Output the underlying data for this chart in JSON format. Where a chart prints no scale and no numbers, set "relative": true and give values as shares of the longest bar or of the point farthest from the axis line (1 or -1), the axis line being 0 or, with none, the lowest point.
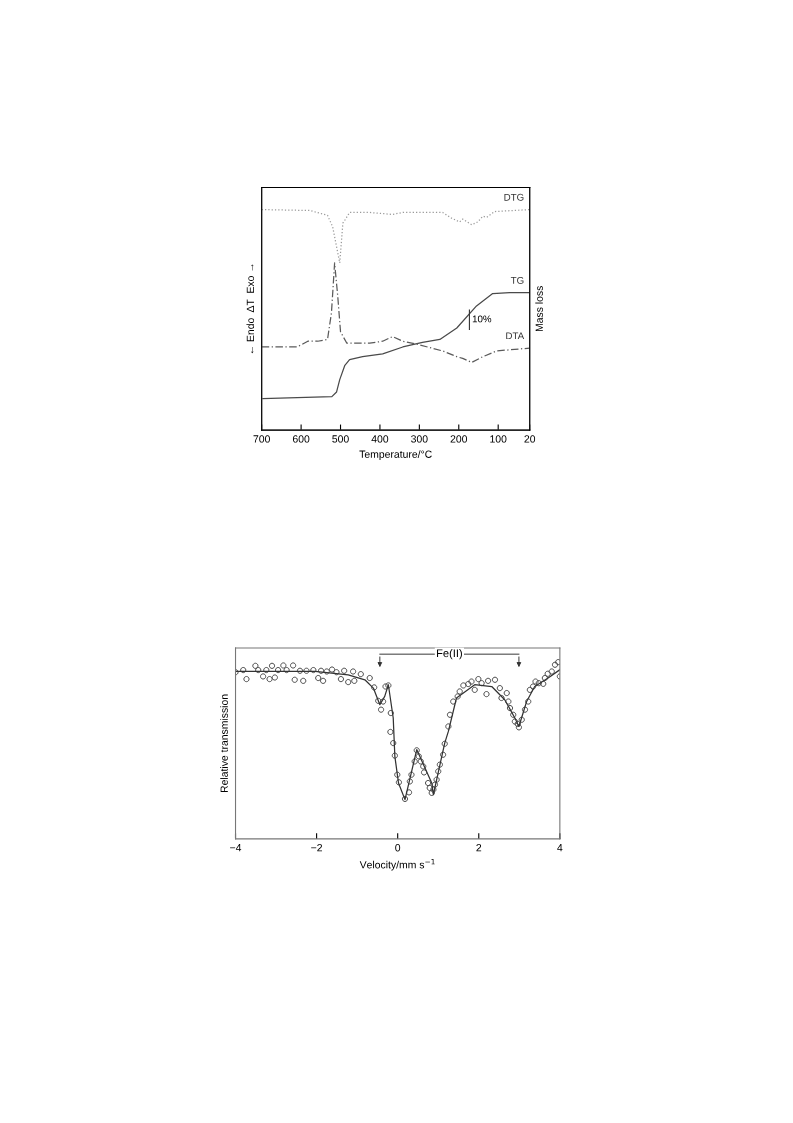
{
  "chart_data": [
    {
      "type": "line",
      "relative": true,
      "xlabel": "Temperature/°C",
      "ylabel": "← Endo  ΔT  Exo →",
      "y2label": "Mass loss",
      "xlim": [
        700,
        20
      ],
      "xticks": [
        700,
        600,
        500,
        400,
        300,
        200,
        100,
        20
      ],
      "tick_labels": "x",
      "grid": false,
      "legend": false,
      "annotations": [
        "10%"
      ],
      "series": [
        {
          "name": "DTG",
          "color": "#9a9a9a",
          "line_style": "dotted",
          "x": [
            700,
            578,
            533,
            520,
            502,
            494,
            489,
            477,
            426,
            368,
            342,
            241,
            218,
            198,
            190,
            167,
            152,
            139,
            129,
            109,
            20
          ],
          "values": [
            1.0,
            0.996,
            0.974,
            0.922,
            0.758,
            0.939,
            0.952,
            0.987,
            0.987,
            0.978,
            0.987,
            0.987,
            0.961,
            0.944,
            0.957,
            0.931,
            0.944,
            0.97,
            0.965,
            0.991,
            1.0
          ]
        },
        {
          "name": "TG",
          "color": "#4a4a4a",
          "line_style": "solid",
          "x": [
            697,
            522,
            510,
            502,
            489,
            477,
            444,
            393,
            342,
            292,
            248,
            205,
            155,
            114,
            71,
            20
          ],
          "values": [
            0.143,
            0.152,
            0.173,
            0.229,
            0.294,
            0.32,
            0.333,
            0.346,
            0.377,
            0.398,
            0.411,
            0.463,
            0.563,
            0.619,
            0.623,
            0.623
          ]
        },
        {
          "name": "DTA",
          "color": "#5a5a5a",
          "line_style": "dashed",
          "x": [
            700,
            609,
            583,
            558,
            533,
            523,
            515,
            507,
            500,
            484,
            426,
            393,
            368,
            342,
            307,
            241,
            205,
            190,
            167,
            139,
            104,
            20
          ],
          "values": [
            0.378,
            0.378,
            0.403,
            0.403,
            0.411,
            0.532,
            0.758,
            0.606,
            0.446,
            0.394,
            0.394,
            0.403,
            0.424,
            0.403,
            0.39,
            0.359,
            0.333,
            0.325,
            0.307,
            0.333,
            0.359,
            0.372
          ]
        }
      ]
    },
    {
      "type": "scatter",
      "relative": true,
      "xlabel": "Velocity/mm s$^{−1}$",
      "ylabel": "Relative transmission",
      "xlim": [
        -4,
        4
      ],
      "xticks": [
        {
          "value": -4,
          "label": "−4"
        },
        {
          "value": -2,
          "label": "−2"
        },
        0,
        2,
        4
      ],
      "tick_labels": "x",
      "grid": false,
      "legend": false,
      "annotations": [
        "Fe(II)"
      ],
      "series": [
        {
          "type": "scatter",
          "color": "#444444",
          "marker": "circle",
          "x": [
            -4.0,
            -3.81,
            -3.73,
            -3.51,
            -3.44,
            -3.32,
            -3.24,
            -3.16,
            -3.1,
            -3.03,
            -2.95,
            -2.82,
            -2.74,
            -2.58,
            -2.54,
            -2.41,
            -2.33,
            -2.25,
            -2.08,
            -1.96,
            -1.89,
            -1.84,
            -1.75,
            -1.62,
            -1.51,
            -1.4,
            -1.32,
            -1.22,
            -1.1,
            -1.07,
            -0.91,
            -0.69,
            -0.58,
            -0.48,
            -0.41,
            -0.36,
            -0.3,
            -0.23,
            -0.18,
            -0.17,
            -0.11,
            -0.07,
            -0.01,
            0.03,
            0.18,
            0.28,
            0.3,
            0.34,
            0.42,
            0.47,
            0.52,
            0.57,
            0.63,
            0.65,
            0.75,
            0.79,
            0.84,
            0.88,
            0.92,
            0.96,
            1.0,
            1.04,
            1.12,
            1.16,
            1.25,
            1.29,
            1.37,
            1.48,
            1.53,
            1.62,
            1.74,
            1.82,
            1.9,
            1.99,
            2.07,
            2.19,
            2.23,
            2.4,
            2.52,
            2.56,
            2.69,
            2.73,
            2.77,
            2.85,
            2.89,
            2.96,
            2.99,
            3.06,
            3.14,
            3.22,
            3.26,
            3.34,
            3.4,
            3.48,
            3.59,
            3.63,
            3.7,
            3.8,
            3.88,
            3.96,
            4.0
          ],
          "values": [
            0.943,
            0.955,
            0.904,
            0.979,
            0.955,
            0.919,
            0.955,
            0.904,
            0.979,
            0.913,
            0.955,
            0.981,
            0.955,
            0.981,
            0.9,
            0.951,
            0.894,
            0.951,
            0.955,
            0.91,
            0.951,
            0.894,
            0.947,
            0.958,
            0.943,
            0.904,
            0.951,
            0.887,
            0.947,
            0.894,
            0.932,
            0.91,
            0.857,
            0.781,
            0.731,
            0.777,
            0.862,
            0.868,
            0.605,
            0.712,
            0.542,
            0.471,
            0.363,
            0.32,
            0.226,
            0.263,
            0.325,
            0.363,
            0.438,
            0.501,
            0.467,
            0.438,
            0.41,
            0.376,
            0.316,
            0.288,
            0.26,
            0.279,
            0.307,
            0.335,
            0.382,
            0.42,
            0.476,
            0.538,
            0.636,
            0.702,
            0.777,
            0.806,
            0.834,
            0.868,
            0.876,
            0.89,
            0.843,
            0.904,
            0.881,
            0.819,
            0.894,
            0.9,
            0.853,
            0.797,
            0.825,
            0.777,
            0.74,
            0.702,
            0.664,
            0.65,
            0.631,
            0.674,
            0.731,
            0.777,
            0.843,
            0.862,
            0.89,
            0.881,
            0.877,
            0.91,
            0.934,
            0.947,
            0.985,
            1.0,
            0.919
          ]
        },
        {
          "type": "line",
          "color": "#333333",
          "marker": "none",
          "x": [
            -4.0,
            -2.04,
            -1.22,
            -0.81,
            -0.6,
            -0.44,
            -0.32,
            -0.23,
            -0.11,
            -0.07,
            0.02,
            0.18,
            0.47,
            0.84,
            0.88,
            1.16,
            1.25,
            1.45,
            1.9,
            2.32,
            2.64,
            2.89,
            2.99,
            3.18,
            3.38,
            3.71,
            4.0
          ],
          "values": [
            0.947,
            0.947,
            0.928,
            0.9,
            0.853,
            0.759,
            0.806,
            0.872,
            0.684,
            0.467,
            0.316,
            0.222,
            0.505,
            0.316,
            0.25,
            0.542,
            0.608,
            0.797,
            0.872,
            0.862,
            0.787,
            0.684,
            0.636,
            0.777,
            0.862,
            0.91,
            0.957
          ]
        }
      ]
    }
  ]
}
